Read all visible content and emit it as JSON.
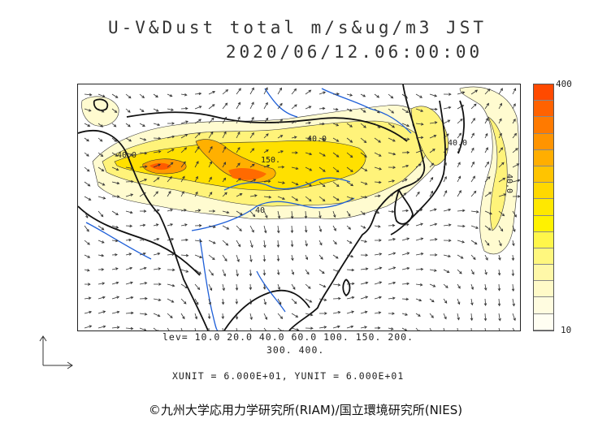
{
  "title_line1": "U-V&Dust total m/s&ug/m3 JST",
  "title_line2": "2020/06/12.06:00:00",
  "colorbar": {
    "max_label": "400",
    "min_label": "10",
    "colors": [
      "#ff4a00",
      "#ff6200",
      "#ff7a00",
      "#ff9400",
      "#ffae00",
      "#ffc400",
      "#ffd800",
      "#ffe800",
      "#fff200",
      "#fff64a",
      "#fff77e",
      "#fff8a8",
      "#fffac8",
      "#fffce0",
      "#fffef2"
    ]
  },
  "levels": {
    "line1": "lev= 10.0 20.0 40.0 60.0 100. 150. 200.",
    "line2": "300. 400."
  },
  "units": "XUNIT = 6.000E+01, YUNIT = 6.000E+01",
  "contour_labels": [
    "40.0",
    "40.0",
    "150.",
    "40",
    "40.0",
    "40.0"
  ],
  "credit": "©九州大学応用力学研究所(RIAM)/国立環境研究所(NIES)"
}
